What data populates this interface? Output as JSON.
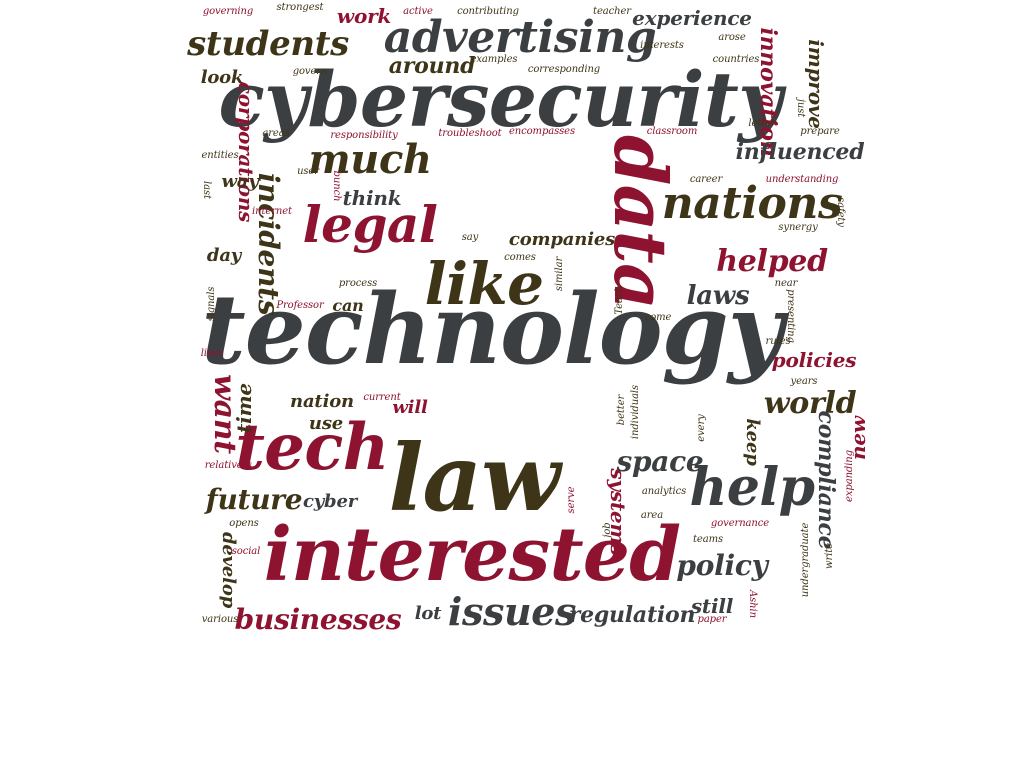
{
  "palette": {
    "charcoal": "#3b3f41",
    "crimson": "#8e1330",
    "olive": "#3e3518"
  },
  "words": [
    {
      "text": "technology"
    },
    {
      "text": "cybersecurity"
    },
    {
      "text": "interested"
    },
    {
      "text": "law"
    },
    {
      "text": "data"
    },
    {
      "text": "tech"
    },
    {
      "text": "like"
    },
    {
      "text": "legal"
    },
    {
      "text": "help"
    },
    {
      "text": "advertising"
    },
    {
      "text": "nations"
    },
    {
      "text": "much"
    },
    {
      "text": "students"
    },
    {
      "text": "issues"
    },
    {
      "text": "businesses"
    },
    {
      "text": "helped"
    },
    {
      "text": "want"
    },
    {
      "text": "incidents"
    },
    {
      "text": "world"
    },
    {
      "text": "future"
    },
    {
      "text": "space"
    },
    {
      "text": "laws"
    },
    {
      "text": "policy"
    },
    {
      "text": "innovation"
    },
    {
      "text": "experience"
    },
    {
      "text": "compliance"
    },
    {
      "text": "corporations"
    },
    {
      "text": "influenced"
    },
    {
      "text": "regulation"
    },
    {
      "text": "around"
    },
    {
      "text": "companies"
    },
    {
      "text": "policies"
    },
    {
      "text": "improve"
    },
    {
      "text": "systems"
    },
    {
      "text": "work"
    },
    {
      "text": "think"
    },
    {
      "text": "still"
    },
    {
      "text": "time"
    },
    {
      "text": "nation"
    },
    {
      "text": "keep"
    },
    {
      "text": "develop"
    },
    {
      "text": "cyber"
    },
    {
      "text": "will"
    },
    {
      "text": "new"
    },
    {
      "text": "use"
    },
    {
      "text": "can"
    },
    {
      "text": "look"
    },
    {
      "text": "day"
    },
    {
      "text": "way"
    },
    {
      "text": "lot"
    },
    {
      "text": "governing"
    },
    {
      "text": "strongest"
    },
    {
      "text": "active"
    },
    {
      "text": "contributing"
    },
    {
      "text": "teacher"
    },
    {
      "text": "interests"
    },
    {
      "text": "arose"
    },
    {
      "text": "examples"
    },
    {
      "text": "corresponding"
    },
    {
      "text": "countries"
    },
    {
      "text": "govern"
    },
    {
      "text": "areas"
    },
    {
      "text": "responsibility"
    },
    {
      "text": "troubleshoot"
    },
    {
      "text": "encompasses"
    },
    {
      "text": "classroom"
    },
    {
      "text": "letter"
    },
    {
      "text": "just"
    },
    {
      "text": "prepare"
    },
    {
      "text": "entities"
    },
    {
      "text": "user"
    },
    {
      "text": "bunch"
    },
    {
      "text": "last"
    },
    {
      "text": "internet"
    },
    {
      "text": "career"
    },
    {
      "text": "understanding"
    },
    {
      "text": "safety"
    },
    {
      "text": "synergy"
    },
    {
      "text": "say"
    },
    {
      "text": "comes"
    },
    {
      "text": "similar"
    },
    {
      "text": "process"
    },
    {
      "text": "signals"
    },
    {
      "text": "Professor"
    },
    {
      "text": "Teach"
    },
    {
      "text": "near"
    },
    {
      "text": "presenting"
    },
    {
      "text": "come"
    },
    {
      "text": "rules"
    },
    {
      "text": "lives"
    },
    {
      "text": "current"
    },
    {
      "text": "better"
    },
    {
      "text": "individuals"
    },
    {
      "text": "every"
    },
    {
      "text": "years"
    },
    {
      "text": "relatively"
    },
    {
      "text": "serve"
    },
    {
      "text": "analytics"
    },
    {
      "text": "expanding"
    },
    {
      "text": "area"
    },
    {
      "text": "job"
    },
    {
      "text": "opens"
    },
    {
      "text": "social"
    },
    {
      "text": "teams"
    },
    {
      "text": "governance"
    },
    {
      "text": "undergraduate"
    },
    {
      "text": "write"
    },
    {
      "text": "various"
    },
    {
      "text": "paper"
    },
    {
      "text": "Ashin"
    }
  ]
}
